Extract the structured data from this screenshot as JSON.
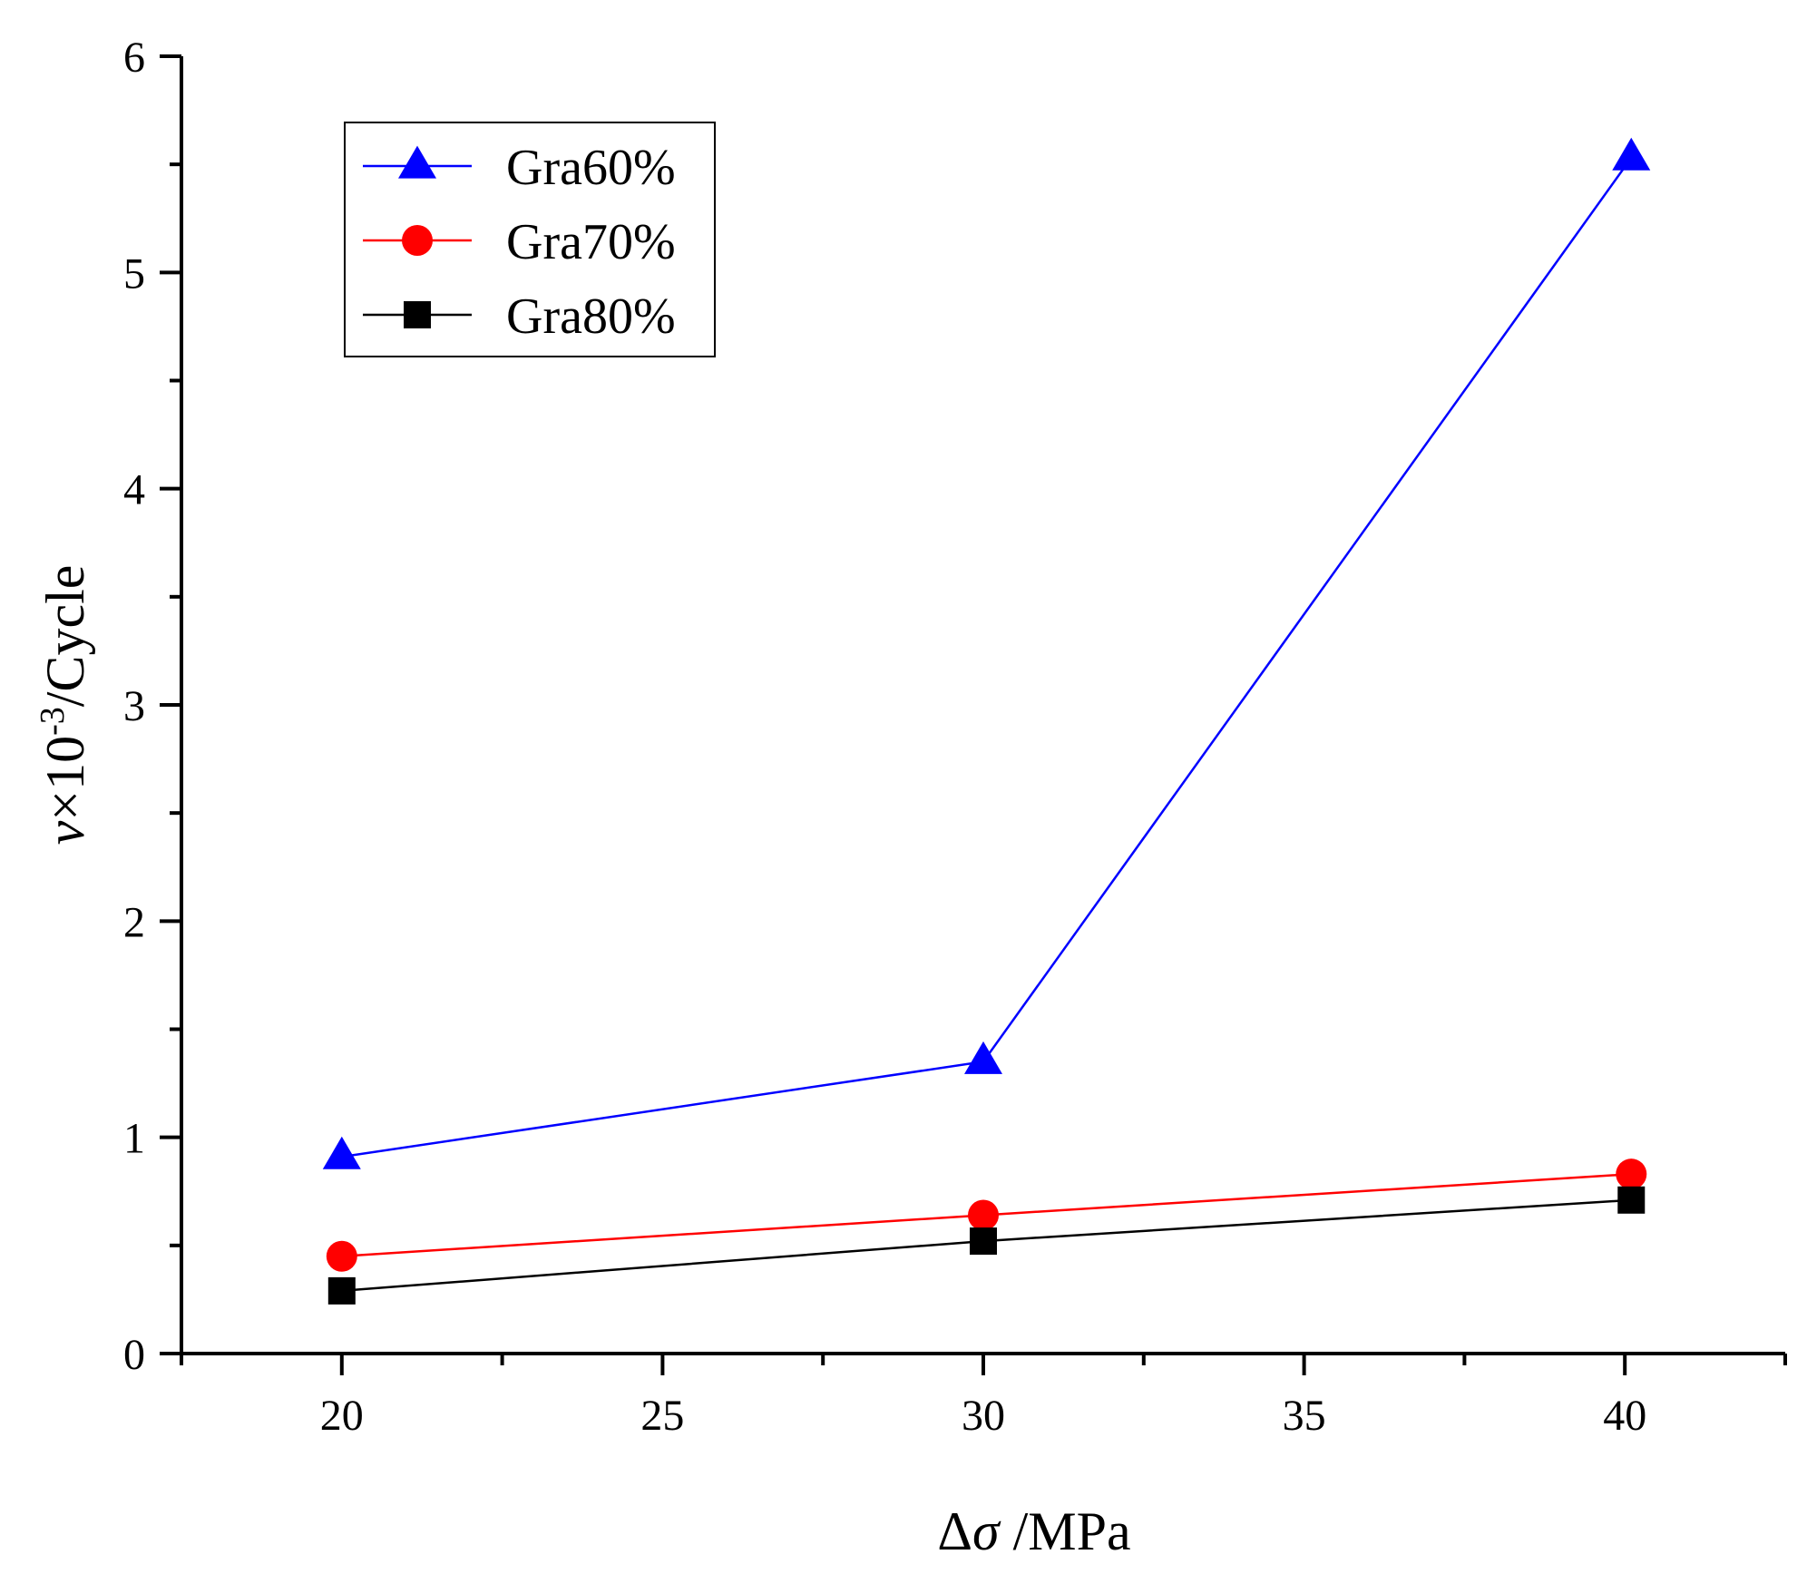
{
  "chart_data": {
    "type": "line",
    "x": [
      20,
      30,
      40
    ],
    "xlim": [
      17.5,
      42.5
    ],
    "ylim": [
      0,
      6
    ],
    "xticks": [
      20,
      25,
      30,
      35,
      40
    ],
    "yticks": [
      0,
      1,
      2,
      3,
      4,
      5,
      6
    ],
    "xlabel_symbol": "Δ",
    "xlabel_sigma": "σ",
    "xlabel_unit": " /MPa",
    "ylabel_var": "v",
    "ylabel_mid": "×10",
    "ylabel_sup": "-3",
    "ylabel_unit": "/Cycle",
    "legend_position": "top-left",
    "series": [
      {
        "name": "Gra60%",
        "marker": "triangle",
        "color": "#0000ff",
        "x": [
          20,
          30,
          40.1
        ],
        "values": [
          0.91,
          1.35,
          5.53
        ]
      },
      {
        "name": "Gra70%",
        "marker": "circle",
        "color": "#ff0000",
        "x": [
          20,
          30,
          40.1
        ],
        "values": [
          0.45,
          0.64,
          0.83
        ]
      },
      {
        "name": "Gra80%",
        "marker": "square",
        "color": "#000000",
        "x": [
          20,
          30,
          40.1
        ],
        "values": [
          0.29,
          0.52,
          0.71
        ]
      }
    ]
  }
}
